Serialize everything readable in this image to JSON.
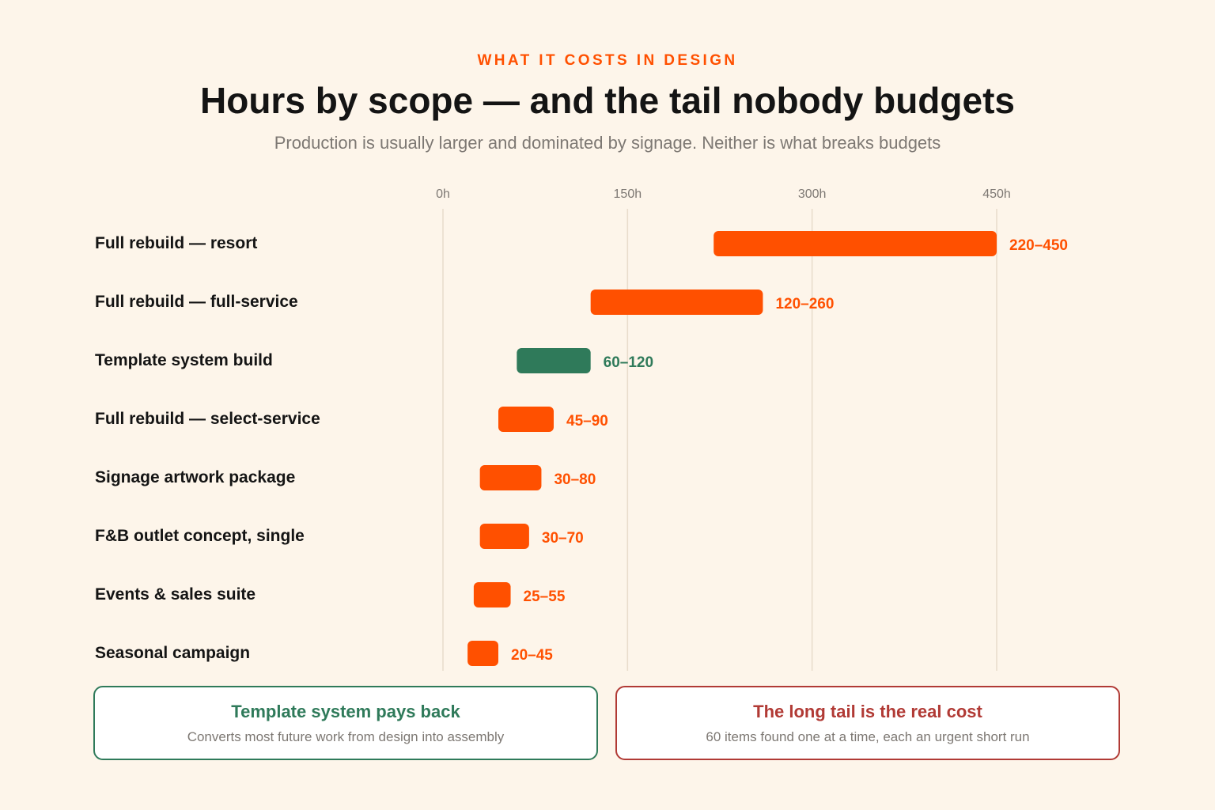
{
  "header": {
    "eyebrow": "WHAT IT COSTS IN DESIGN",
    "title": "Hours by scope — and the tail nobody budgets",
    "subtitle": "Production is usually larger and dominated by signage. Neither is what breaks budgets"
  },
  "chart_data": {
    "type": "bar",
    "orientation": "horizontal-range",
    "x_ticks": [
      "0h",
      "150h",
      "300h",
      "450h"
    ],
    "xlim": [
      0,
      450
    ],
    "grid": true,
    "categories": [
      "Full rebuild — resort",
      "Full rebuild — full-service",
      "Template system build",
      "Full rebuild — select-service",
      "Signage artwork package",
      "F&B outlet concept, single",
      "Events & sales suite",
      "Seasonal campaign"
    ],
    "ranges": [
      {
        "low": 220,
        "high": 450,
        "label": "220–450",
        "color": "#ff5000"
      },
      {
        "low": 120,
        "high": 260,
        "label": "120–260",
        "color": "#ff5000"
      },
      {
        "low": 60,
        "high": 120,
        "label": "60–120",
        "color": "#2f7a5a"
      },
      {
        "low": 45,
        "high": 90,
        "label": "45–90",
        "color": "#ff5000"
      },
      {
        "low": 30,
        "high": 80,
        "label": "30–80",
        "color": "#ff5000"
      },
      {
        "low": 30,
        "high": 70,
        "label": "30–70",
        "color": "#ff5000"
      },
      {
        "low": 25,
        "high": 55,
        "label": "25–55",
        "color": "#ff5000"
      },
      {
        "low": 20,
        "high": 45,
        "label": "20–45",
        "color": "#ff5000"
      }
    ]
  },
  "callouts": {
    "left": {
      "title": "Template system pays back",
      "body": "Converts most future work from design into assembly",
      "color": "#2f7a5a"
    },
    "right": {
      "title": "The long tail is the real cost",
      "body": "60 items found one at a time, each an urgent short run",
      "color": "#b13a35"
    }
  },
  "colors": {
    "accent": "#ff5000",
    "highlight": "#2f7a5a",
    "warning": "#b13a35",
    "background": "#fdf5ea"
  }
}
